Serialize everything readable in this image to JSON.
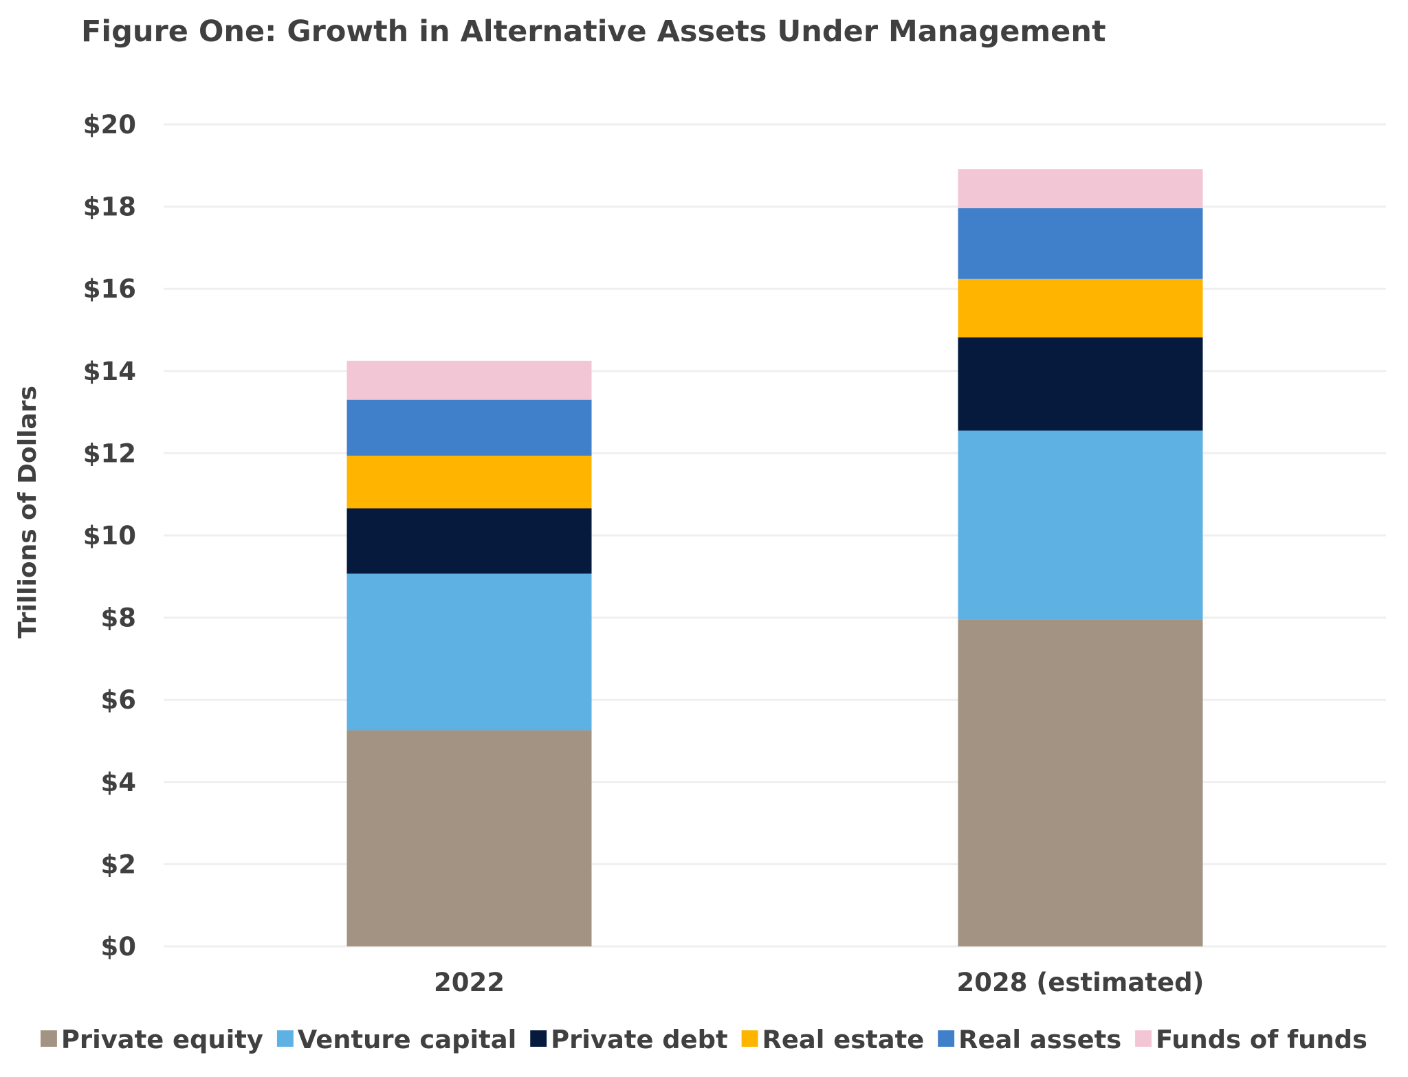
{
  "chart_data": {
    "type": "bar",
    "stacked": true,
    "title": "Figure One: Growth in Alternative Assets Under Management",
    "xlabel": "",
    "ylabel": "Trillions of Dollars",
    "ylim": [
      0,
      20
    ],
    "yticks": [
      0,
      2,
      4,
      6,
      8,
      10,
      12,
      14,
      16,
      18,
      20
    ],
    "ytick_labels": [
      "$0",
      "$2",
      "$4",
      "$6",
      "$8",
      "$10",
      "$12",
      "$14",
      "$16",
      "$18",
      "$20"
    ],
    "grid": true,
    "legend_position": "bottom",
    "categories": [
      "2022",
      "2028 (estimated)"
    ],
    "series": [
      {
        "name": "Private equity",
        "color": "#a39382",
        "values": [
          5.26,
          7.95
        ]
      },
      {
        "name": "Venture capital",
        "color": "#5eb1e3",
        "values": [
          3.81,
          4.6
        ]
      },
      {
        "name": "Private debt",
        "color": "#061a3d",
        "values": [
          1.59,
          2.27
        ]
      },
      {
        "name": "Real estate",
        "color": "#ffb500",
        "values": [
          1.28,
          1.42
        ]
      },
      {
        "name": "Real assets",
        "color": "#407fc9",
        "values": [
          1.36,
          1.72
        ]
      },
      {
        "name": "Funds of funds",
        "color": "#f2c6d5",
        "values": [
          0.95,
          0.95
        ]
      }
    ]
  }
}
